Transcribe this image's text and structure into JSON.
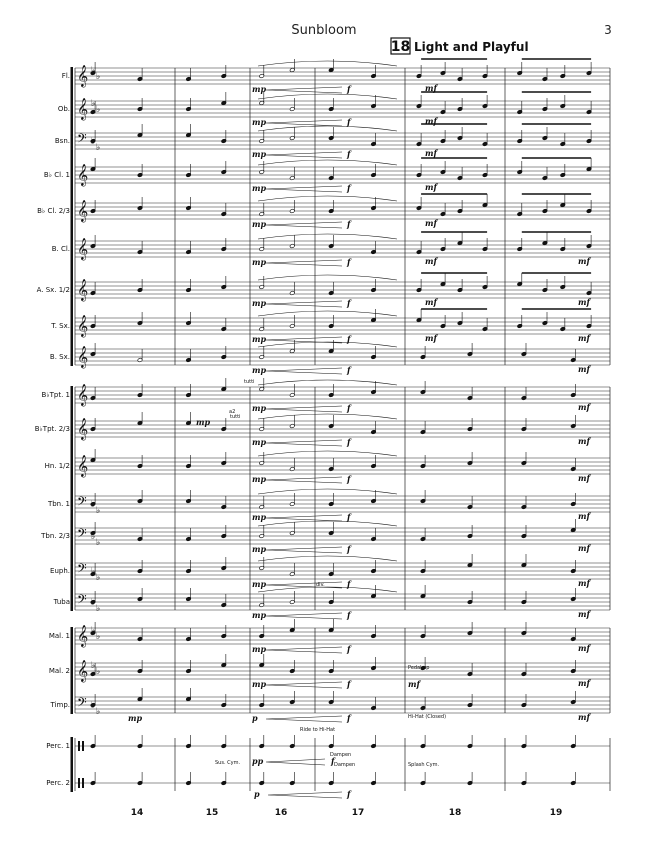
{
  "header": {
    "title": "Sunbloom",
    "page_number": "3",
    "rehearsal_mark": "18",
    "tempo_text": "Light and Playful"
  },
  "instruments": [
    {
      "label": "Fl.",
      "clef": "treble",
      "key": "bflat"
    },
    {
      "label": "Ob.",
      "clef": "treble",
      "key": "bflat"
    },
    {
      "label": "Bsn.",
      "clef": "bass",
      "key": "bflat"
    },
    {
      "label": "B♭ Cl. 1",
      "clef": "treble",
      "key": "none"
    },
    {
      "label": "B♭ Cl. 2/3",
      "clef": "treble",
      "key": "none"
    },
    {
      "label": "B. Cl.",
      "clef": "treble",
      "key": "none"
    },
    {
      "label": "A. Sx. 1/2",
      "clef": "treble",
      "key": "none"
    },
    {
      "label": "T. Sx.",
      "clef": "treble",
      "key": "none"
    },
    {
      "label": "B. Sx.",
      "clef": "treble",
      "key": "none"
    },
    {
      "label": "B♭Tpt. 1",
      "clef": "treble",
      "key": "none"
    },
    {
      "label": "B♭Tpt. 2/3",
      "clef": "treble",
      "key": "none"
    },
    {
      "label": "Hn. 1/2",
      "clef": "treble",
      "key": "none"
    },
    {
      "label": "Tbn. 1",
      "clef": "bass",
      "key": "bflat"
    },
    {
      "label": "Tbn. 2/3",
      "clef": "bass",
      "key": "bflat"
    },
    {
      "label": "Euph.",
      "clef": "bass",
      "key": "bflat"
    },
    {
      "label": "Tuba",
      "clef": "bass",
      "key": "bflat"
    },
    {
      "label": "Mal. 1",
      "clef": "treble",
      "key": "bflat"
    },
    {
      "label": "Mal. 2",
      "clef": "treble",
      "key": "bflat"
    },
    {
      "label": "Timp.",
      "clef": "bass",
      "key": "bflat"
    },
    {
      "label": "Perc. 1",
      "clef": "perc",
      "key": "none"
    },
    {
      "label": "Perc. 2",
      "clef": "perc",
      "key": "none"
    }
  ],
  "measure_numbers": [
    "14",
    "15",
    "16",
    "17",
    "18",
    "19"
  ],
  "dynamics": {
    "mp": "mp",
    "f": "f",
    "mf": "mf",
    "p": "p",
    "pp": "pp"
  },
  "annotations": {
    "tutti": "tutti",
    "a2": "a2",
    "div": "div.",
    "pedal_up": "Pedal up",
    "hihat_closed": "Hi-Hat (Closed)",
    "ride_to_hihat": "Ride to Hi-Hat",
    "dampen": "Dampen",
    "sus_cym": "Sus. Cym.",
    "splash_cym": "Splash Cym."
  }
}
